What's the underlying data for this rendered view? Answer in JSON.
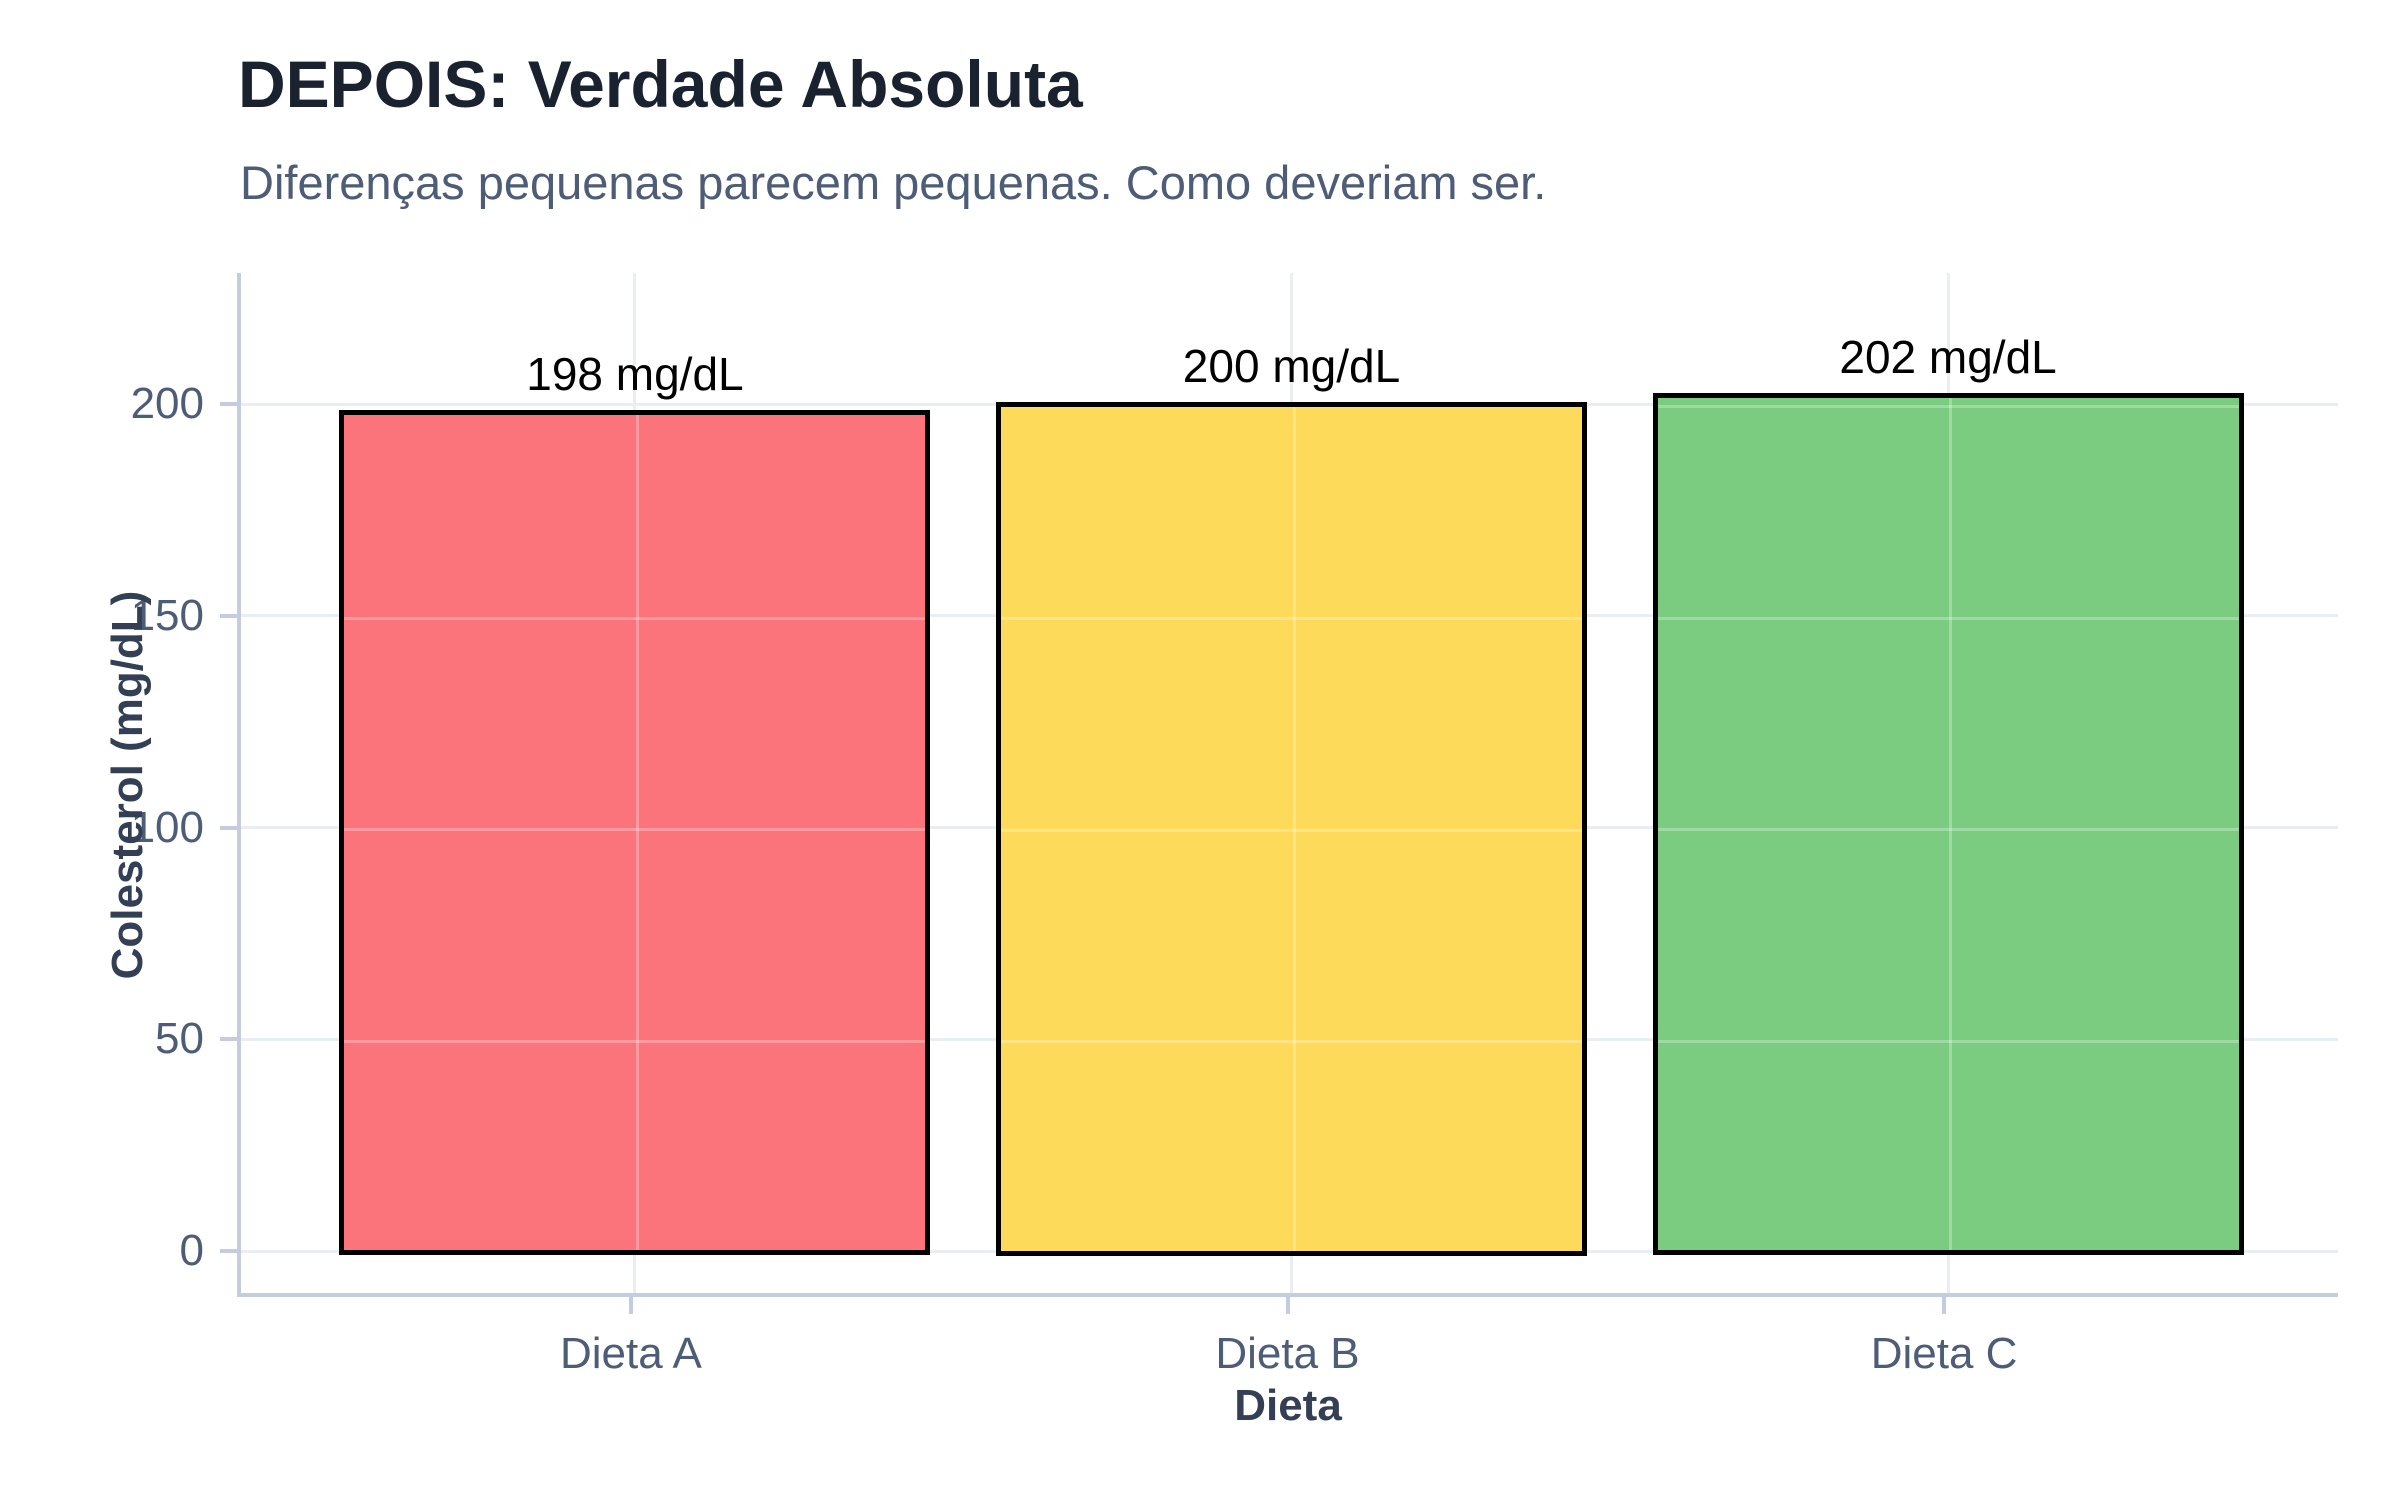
{
  "chart_data": {
    "type": "bar",
    "title": "DEPOIS: Verdade Absoluta",
    "subtitle": "Diferenças pequenas parecem pequenas. Como deveriam ser.",
    "xlabel": "Dieta",
    "ylabel": "Colesterol (mg/dL)",
    "categories": [
      "Dieta A",
      "Dieta B",
      "Dieta C"
    ],
    "values": [
      198,
      200,
      202
    ],
    "bar_labels": [
      "198 mg/dL",
      "200 mg/dL",
      "202 mg/dL"
    ],
    "yticks": [
      0,
      50,
      100,
      150,
      200
    ],
    "ylim": [
      0,
      230
    ],
    "grid": true,
    "legend": false,
    "bar_colors": [
      "#fb737b",
      "#fdda5a",
      "#7bcb81"
    ],
    "bar_border_color": "#000000"
  },
  "colors": {
    "title": "#1a212f",
    "subtitle": "#4d5c77",
    "tick_label": "#4d5c77",
    "axis_title": "#333f55",
    "axis_line": "#c3cdde",
    "gridline": "#e9edf4",
    "value_label": "#000000",
    "background": "#ffffff"
  }
}
